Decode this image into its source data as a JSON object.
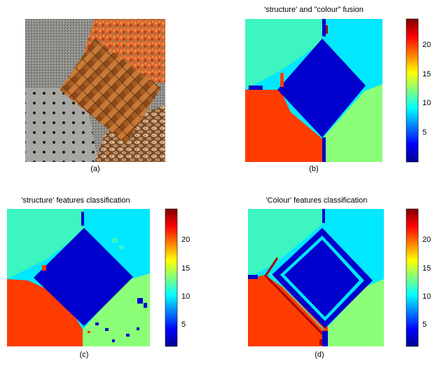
{
  "panels": {
    "a": {
      "caption": "(a)",
      "texture_regions": [
        "gravel",
        "orange-foliage",
        "perforated-metal",
        "woven-wicker",
        "pinto-beans"
      ]
    },
    "b": {
      "title": "'structure' and \"colour\" fusion",
      "caption": "(b)"
    },
    "c": {
      "title": "'structure' features classification",
      "caption": "(c)"
    },
    "d": {
      "title": "'Colour' features classification",
      "caption": "(d)"
    }
  },
  "colorbar": {
    "ticks": [
      "5",
      "10",
      "15",
      "20"
    ],
    "range": [
      1,
      24
    ]
  },
  "colors": {
    "center_region": "#0000cc",
    "top_left_region": "#3cf5c0",
    "top_right_region": "#00e8ff",
    "bottom_left_region": "#ff3c00",
    "bottom_right_region": "#8cff78",
    "boundary_dark_red": "#a80000"
  }
}
